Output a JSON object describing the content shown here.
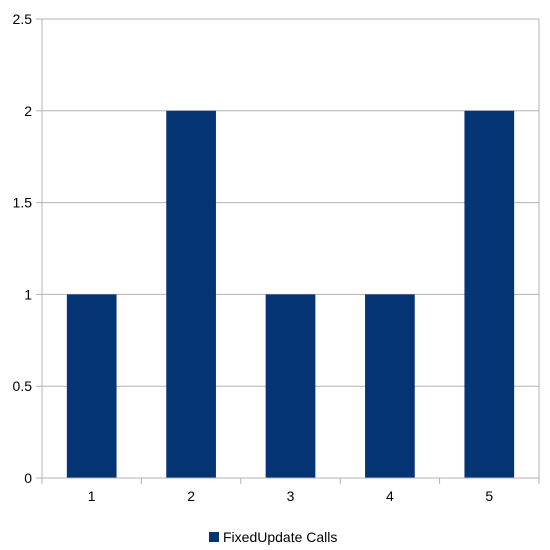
{
  "chart_data": {
    "type": "bar",
    "categories": [
      "1",
      "2",
      "3",
      "4",
      "5"
    ],
    "series": [
      {
        "name": "FixedUpdate Calls",
        "values": [
          1,
          2,
          1,
          1,
          2
        ],
        "color": "#043473"
      }
    ],
    "ylim": [
      0,
      2.5
    ],
    "y_ticks": [
      "0",
      "0.5",
      "1",
      "1.5",
      "2",
      "2.5"
    ],
    "grid": true,
    "legend_position": "bottom-center",
    "title": "",
    "xlabel": "",
    "ylabel": ""
  }
}
